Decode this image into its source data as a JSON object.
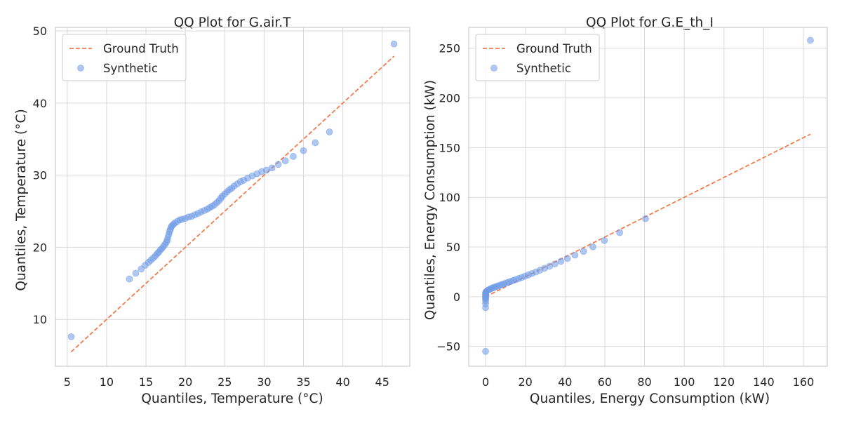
{
  "colors": {
    "ground_truth": "#f07c4f",
    "synthetic": "#6f9be6",
    "grid": "#d9d9d9",
    "frame": "#cccccc",
    "text": "#262626"
  },
  "chart_data": [
    {
      "type": "scatter",
      "title": "QQ Plot for G.air.T",
      "xlabel": "Quantiles, Temperature (°C)",
      "ylabel": "Quantiles, Temperature (°C)",
      "xlim": [
        3.5,
        48.5
      ],
      "ylim": [
        3.5,
        50.5
      ],
      "xticks": [
        5,
        10,
        15,
        20,
        25,
        30,
        35,
        40,
        45
      ],
      "yticks": [
        10,
        20,
        30,
        40,
        50
      ],
      "grid": true,
      "legend": {
        "position": "top-left",
        "entries": [
          {
            "label": "Ground Truth",
            "kind": "line"
          },
          {
            "label": "Synthetic",
            "kind": "marker"
          }
        ]
      },
      "series": [
        {
          "name": "Ground Truth",
          "kind": "line",
          "x": [
            5.5,
            46.5
          ],
          "y": [
            5.5,
            46.5
          ]
        },
        {
          "name": "Synthetic",
          "kind": "scatter",
          "x": [
            5.5,
            12.9,
            13.7,
            14.4,
            14.9,
            15.3,
            15.6,
            15.9,
            16.2,
            16.4,
            16.6,
            16.8,
            17.0,
            17.2,
            17.4,
            17.6,
            17.7,
            17.8,
            17.9,
            18.0,
            18.1,
            18.2,
            18.3,
            18.5,
            18.7,
            19.0,
            19.3,
            19.6,
            20.0,
            20.4,
            20.8,
            21.2,
            21.6,
            22.0,
            22.4,
            22.8,
            23.1,
            23.4,
            23.7,
            24.0,
            24.3,
            24.5,
            24.7,
            25.0,
            25.3,
            25.6,
            25.9,
            26.2,
            26.6,
            27.0,
            27.4,
            27.9,
            28.5,
            29.1,
            29.7,
            30.3,
            31.0,
            31.8,
            32.7,
            33.7,
            35.0,
            36.5,
            38.3,
            46.5
          ],
          "y": [
            7.6,
            15.6,
            16.4,
            17.0,
            17.5,
            17.9,
            18.2,
            18.5,
            18.8,
            19.1,
            19.3,
            19.6,
            19.8,
            20.1,
            20.4,
            20.7,
            21.0,
            21.4,
            21.8,
            22.2,
            22.5,
            22.8,
            23.0,
            23.2,
            23.4,
            23.6,
            23.8,
            23.9,
            24.0,
            24.2,
            24.3,
            24.5,
            24.7,
            24.9,
            25.1,
            25.3,
            25.5,
            25.7,
            25.9,
            26.2,
            26.5,
            26.8,
            27.1,
            27.4,
            27.7,
            28.0,
            28.2,
            28.5,
            28.8,
            29.1,
            29.3,
            29.6,
            29.9,
            30.2,
            30.5,
            30.7,
            31.0,
            31.5,
            32.0,
            32.6,
            33.4,
            34.5,
            36.0,
            48.2
          ]
        }
      ]
    },
    {
      "type": "scatter",
      "title": "QQ Plot for G.E_th_I",
      "xlabel": "Quantiles, Energy Consumption (kW)",
      "ylabel": "Quantiles, Energy Consumption (kW)",
      "xlim": [
        -8.5,
        172
      ],
      "ylim": [
        -70,
        271
      ],
      "xticks": [
        0,
        20,
        40,
        60,
        80,
        100,
        120,
        140,
        160
      ],
      "yticks": [
        -50,
        0,
        50,
        100,
        150,
        200,
        250
      ],
      "grid": true,
      "legend": {
        "position": "top-left",
        "entries": [
          {
            "label": "Ground Truth",
            "kind": "line"
          },
          {
            "label": "Synthetic",
            "kind": "marker"
          }
        ]
      },
      "series": [
        {
          "name": "Ground Truth",
          "kind": "line",
          "x": [
            0,
            163.5
          ],
          "y": [
            0,
            163.5
          ]
        },
        {
          "name": "Synthetic",
          "kind": "scatter",
          "x": [
            0,
            0,
            0,
            0,
            0,
            0,
            0,
            0,
            0,
            0,
            0,
            0.2,
            0.5,
            1.0,
            1.5,
            2.0,
            2.6,
            3.3,
            4.0,
            4.8,
            5.6,
            6.5,
            7.4,
            8.4,
            9.4,
            10.5,
            11.6,
            12.8,
            14.0,
            15.3,
            16.7,
            18.2,
            19.8,
            21.5,
            23.3,
            25.3,
            27.4,
            29.7,
            32.2,
            34.9,
            37.9,
            41.2,
            45.0,
            49.3,
            54.0,
            59.8,
            67.5,
            80.5,
            163.5
          ],
          "y": [
            -55,
            -11,
            -7,
            -4,
            -2,
            -1,
            0,
            1,
            2,
            3,
            4,
            4.8,
            5.5,
            6.2,
            6.8,
            7.4,
            8.0,
            8.6,
            9.2,
            9.8,
            10.4,
            11.0,
            11.7,
            12.4,
            13.1,
            13.9,
            14.7,
            15.5,
            16.4,
            17.3,
            18.3,
            19.4,
            20.6,
            21.9,
            23.3,
            24.9,
            26.7,
            28.6,
            30.7,
            33.0,
            35.6,
            38.5,
            41.8,
            45.6,
            50.2,
            56.5,
            64.5,
            78.5,
            258
          ]
        }
      ]
    }
  ]
}
